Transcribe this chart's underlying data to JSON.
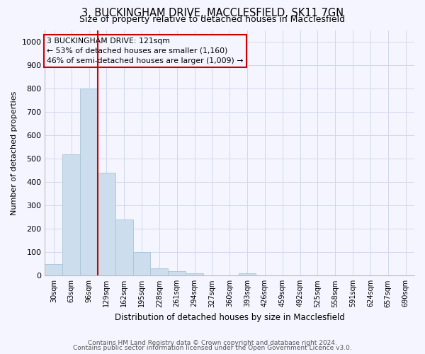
{
  "title": "3, BUCKINGHAM DRIVE, MACCLESFIELD, SK11 7GN",
  "subtitle": "Size of property relative to detached houses in Macclesfield",
  "xlabel": "Distribution of detached houses by size in Macclesfield",
  "ylabel": "Number of detached properties",
  "footnote1": "Contains HM Land Registry data © Crown copyright and database right 2024.",
  "footnote2": "Contains public sector information licensed under the Open Government Licence v3.0.",
  "annotation_title": "3 BUCKINGHAM DRIVE: 121sqm",
  "annotation_line2": "← 53% of detached houses are smaller (1,160)",
  "annotation_line3": "46% of semi-detached houses are larger (1,009) →",
  "bar_labels": [
    "30sqm",
    "63sqm",
    "96sqm",
    "129sqm",
    "162sqm",
    "195sqm",
    "228sqm",
    "261sqm",
    "294sqm",
    "327sqm",
    "360sqm",
    "393sqm",
    "426sqm",
    "459sqm",
    "492sqm",
    "525sqm",
    "558sqm",
    "591sqm",
    "624sqm",
    "657sqm",
    "690sqm"
  ],
  "bar_values": [
    50,
    520,
    800,
    440,
    240,
    100,
    30,
    20,
    10,
    0,
    0,
    10,
    0,
    0,
    0,
    0,
    0,
    0,
    0,
    0,
    0
  ],
  "bar_color": "#ccdded",
  "bar_edge_color": "#a8c4d8",
  "vline_color": "#cc0000",
  "ylim": [
    0,
    1050
  ],
  "yticks": [
    0,
    100,
    200,
    300,
    400,
    500,
    600,
    700,
    800,
    900,
    1000
  ],
  "bg_color": "#f5f5ff",
  "grid_color": "#d0d8ec",
  "title_fontsize": 10.5,
  "subtitle_fontsize": 9
}
